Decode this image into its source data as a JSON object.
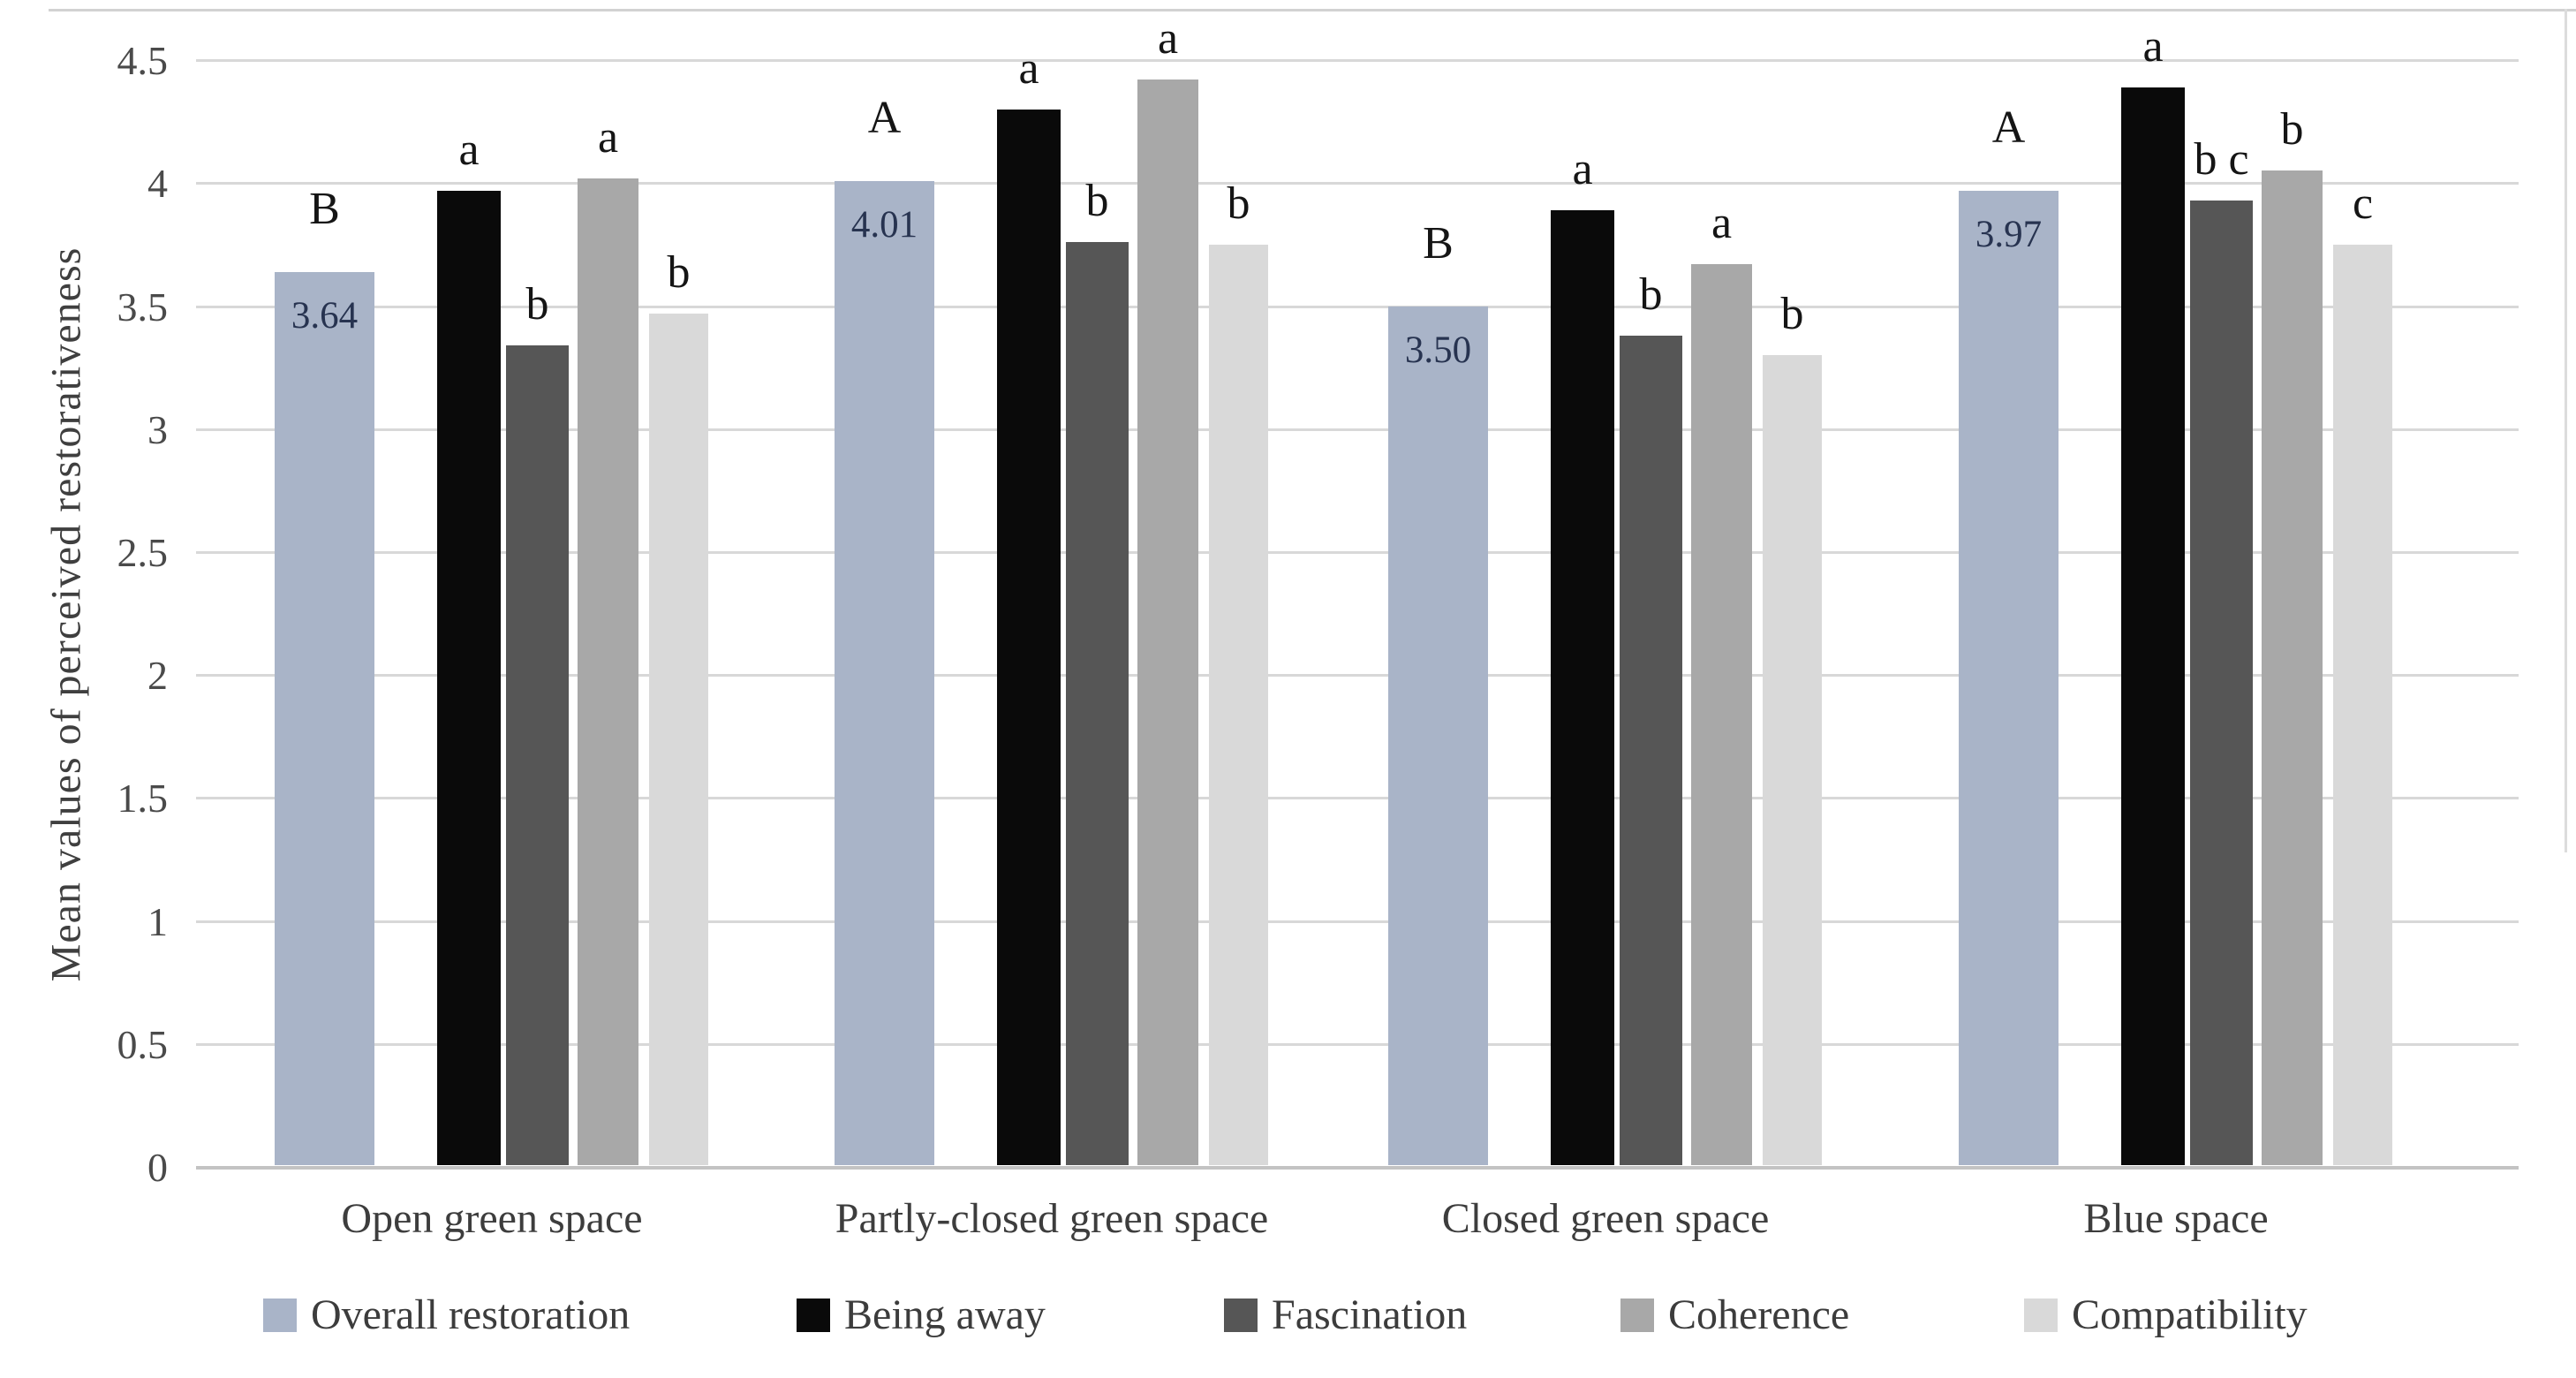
{
  "chart_data": {
    "type": "bar",
    "title": "",
    "ylabel": "Mean values of perceived restorativeness",
    "xlabel": "",
    "ylim": [
      0,
      4.5
    ],
    "ytick_labels": [
      "0",
      "0.5",
      "1",
      "1.5",
      "2",
      "2.5",
      "3",
      "3.5",
      "4",
      "4.5"
    ],
    "grid": "horizontal",
    "legend_position": "bottom",
    "categories": [
      "Open green space",
      "Partly-closed green space",
      "Closed green space",
      "Blue space"
    ],
    "series": [
      {
        "name": "Overall restoration",
        "color": "#a9b4c8",
        "values": [
          3.64,
          4.01,
          3.5,
          3.97
        ],
        "value_labels": [
          "3.64",
          "4.01",
          "3.50",
          "3.97"
        ],
        "sig_letters": [
          "B",
          "A",
          "B",
          "A"
        ]
      },
      {
        "name": "Being away",
        "color": "#0a0a0a",
        "values": [
          3.97,
          4.3,
          3.89,
          4.39
        ],
        "value_labels": [
          "",
          "",
          "",
          ""
        ],
        "sig_letters": [
          "a",
          "a",
          "a",
          "a"
        ]
      },
      {
        "name": "Fascination",
        "color": "#565656",
        "values": [
          3.34,
          3.76,
          3.38,
          3.93
        ],
        "value_labels": [
          "",
          "",
          "",
          ""
        ],
        "sig_letters": [
          "b",
          "b",
          "b",
          "b c"
        ]
      },
      {
        "name": "Coherence",
        "color": "#a8a8a8",
        "values": [
          4.02,
          4.42,
          3.67,
          4.05
        ],
        "value_labels": [
          "",
          "",
          "",
          ""
        ],
        "sig_letters": [
          "a",
          "a",
          "a",
          "b"
        ]
      },
      {
        "name": "Compatibility",
        "color": "#d9d9d9",
        "values": [
          3.47,
          3.75,
          3.3,
          3.75
        ],
        "value_labels": [
          "",
          "",
          "",
          ""
        ],
        "sig_letters": [
          "b",
          "b",
          "b",
          "c"
        ]
      }
    ]
  }
}
